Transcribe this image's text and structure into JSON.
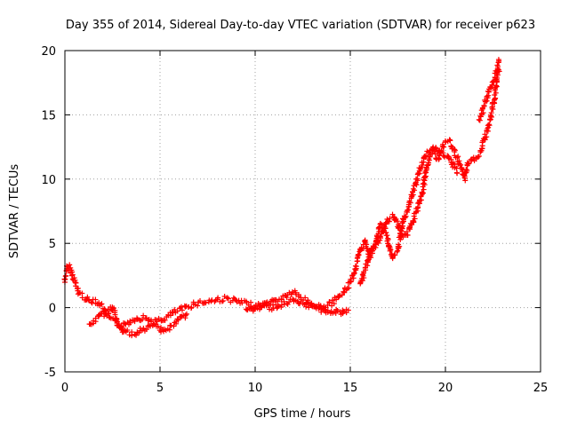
{
  "chart_data": {
    "type": "scatter",
    "title": "Day 355 of 2014, Sidereal Day-to-day VTEC variation (SDTVAR) for receiver p623",
    "xlabel": "GPS time / hours",
    "ylabel": "SDTVAR / TECUs",
    "xlim": [
      0,
      25
    ],
    "ylim": [
      -5,
      20
    ],
    "xticks": [
      0,
      5,
      10,
      15,
      20,
      25
    ],
    "yticks": [
      -5,
      0,
      5,
      10,
      15,
      20
    ],
    "grid": true,
    "marker": "plus",
    "color": "#ff0000",
    "series": [
      {
        "x": [
          0.0,
          0.1,
          0.2,
          0.35,
          0.5,
          0.7,
          1.0,
          1.3,
          1.6,
          1.9,
          2.2,
          2.5,
          2.8,
          3.0,
          3.3,
          3.6,
          3.9,
          4.2,
          4.5,
          4.8,
          5.1,
          5.4,
          5.7,
          6.0,
          6.4,
          6.8,
          7.2,
          7.6,
          8.0,
          8.4,
          8.8,
          9.2,
          9.6,
          10.0,
          10.4,
          10.8,
          11.2,
          11.6,
          12.0,
          12.4,
          12.8,
          13.2,
          13.6,
          14.0,
          14.4,
          14.8,
          15.0,
          15.2,
          15.4,
          15.6,
          15.8,
          16.0,
          16.3,
          16.6,
          16.9,
          17.2,
          17.5,
          17.8,
          18.1,
          18.4,
          18.7,
          19.0,
          19.3,
          19.6,
          19.9,
          20.2,
          20.5,
          20.8,
          21.0,
          21.2,
          21.5,
          21.8,
          22.0,
          22.2,
          22.4,
          22.6,
          22.8
        ],
        "y": [
          2.0,
          3.0,
          3.2,
          2.8,
          2.2,
          1.2,
          0.8,
          0.5,
          0.6,
          0.2,
          -0.5,
          -1.0,
          -1.3,
          -1.5,
          -1.2,
          -0.9,
          -0.8,
          -0.8,
          -1.0,
          -1.1,
          -1.0,
          -0.7,
          -0.4,
          -0.2,
          0.0,
          0.3,
          0.4,
          0.5,
          0.6,
          0.7,
          0.6,
          0.4,
          0.3,
          0.1,
          0.2,
          0.4,
          0.6,
          0.9,
          1.2,
          0.8,
          0.4,
          0.1,
          0.0,
          0.3,
          0.8,
          1.5,
          2.0,
          2.7,
          3.8,
          4.6,
          5.2,
          4.0,
          4.8,
          6.5,
          5.8,
          3.8,
          4.5,
          6.8,
          8.0,
          9.5,
          11.0,
          12.0,
          12.2,
          11.5,
          12.8,
          13.0,
          12.0,
          11.0,
          10.0,
          11.2,
          11.5,
          12.0,
          12.8,
          13.8,
          15.0,
          16.5,
          18.5
        ]
      },
      {
        "x": [
          1.3,
          1.6,
          1.9,
          2.2,
          2.5,
          2.8,
          3.1,
          3.4,
          3.7,
          4.0,
          4.3,
          4.6,
          4.9,
          5.2,
          5.5,
          5.8,
          6.1,
          6.4
        ],
        "y": [
          -1.4,
          -1.0,
          -0.6,
          -0.3,
          0.0,
          -1.4,
          -1.8,
          -2.0,
          -2.2,
          -1.8,
          -1.6,
          -1.4,
          -1.5,
          -1.8,
          -1.6,
          -1.2,
          -0.8,
          -0.5
        ]
      },
      {
        "x": [
          9.5,
          10.0,
          10.5,
          11.0,
          11.5,
          12.0,
          12.5,
          13.0,
          13.5,
          14.0,
          14.5,
          14.9
        ],
        "y": [
          -0.2,
          -0.1,
          0.1,
          0.0,
          0.3,
          0.5,
          0.2,
          0.1,
          -0.2,
          -0.3,
          -0.4,
          -0.2
        ]
      },
      {
        "x": [
          15.5,
          15.8,
          16.1,
          16.4,
          16.7,
          17.0,
          17.3,
          17.6,
          17.9,
          18.2,
          18.5,
          18.8,
          19.1,
          19.4,
          19.7,
          20.0,
          20.3,
          20.6
        ],
        "y": [
          1.8,
          3.0,
          4.5,
          5.0,
          6.0,
          6.8,
          7.2,
          6.0,
          5.5,
          6.5,
          7.5,
          9.0,
          11.5,
          12.5,
          12.0,
          11.8,
          11.5,
          10.5
        ]
      },
      {
        "x": [
          21.8,
          22.0,
          22.2,
          22.4,
          22.6,
          22.8
        ],
        "y": [
          14.5,
          15.5,
          16.5,
          17.2,
          17.8,
          19.3
        ]
      }
    ]
  }
}
